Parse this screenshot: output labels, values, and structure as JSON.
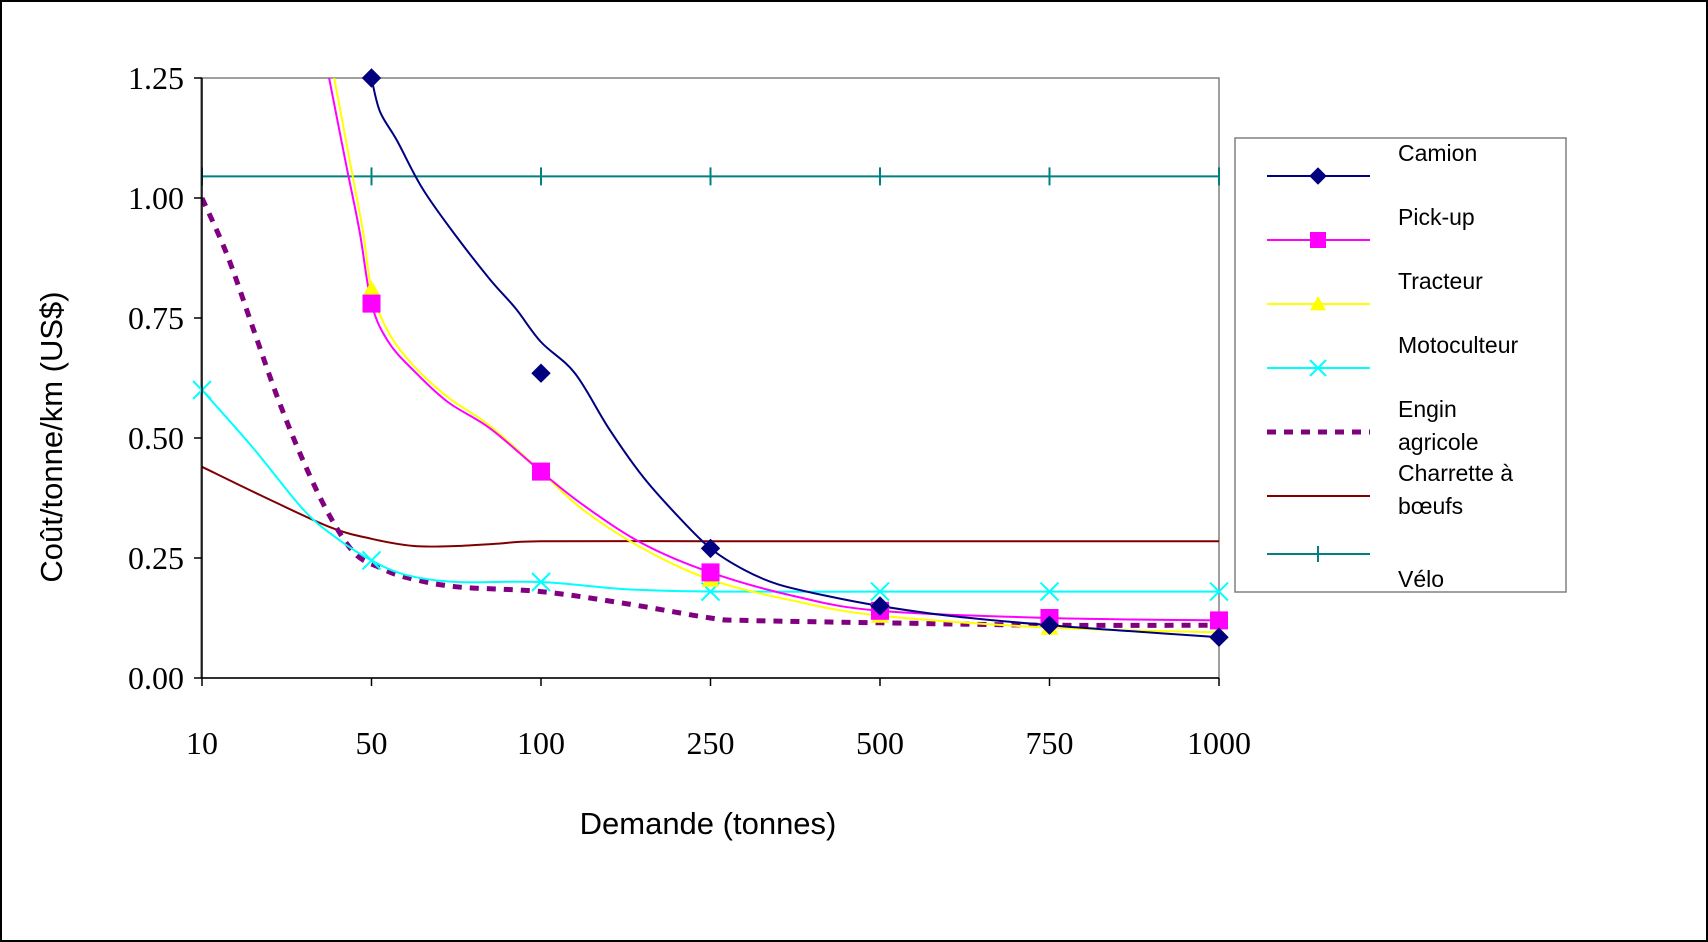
{
  "chart_data": {
    "type": "line",
    "title": "",
    "xlabel": "Demande (tonnes)",
    "ylabel": "Coût/tonne/km (US$)",
    "categories": [
      "10",
      "50",
      "100",
      "250",
      "500",
      "750",
      "1000"
    ],
    "yticks": [
      "0.00",
      "0.25",
      "0.50",
      "0.75",
      "1.00",
      "1.25"
    ],
    "ylim": [
      0,
      1.25
    ],
    "grid": false,
    "legend_position": "right",
    "series": [
      {
        "name": "Camion",
        "color": "#000080",
        "marker": "diamond",
        "dashed": false,
        "x": [
          1,
          1.05,
          1.15,
          1.3,
          1.5,
          1.7,
          1.85,
          2,
          2.2,
          2.4,
          2.6,
          2.8,
          3,
          3.2,
          3.4,
          3.7,
          4,
          4.4,
          5,
          5.5,
          6
        ],
        "y": [
          1.25,
          1.18,
          1.12,
          1.02,
          0.92,
          0.83,
          0.77,
          0.7,
          0.635,
          0.52,
          0.42,
          0.34,
          0.27,
          0.225,
          0.195,
          0.17,
          0.15,
          0.13,
          0.11,
          0.097,
          0.085
        ],
        "marker_x": [
          1,
          2,
          3,
          4,
          5,
          6
        ],
        "marker_y": [
          1.25,
          0.635,
          0.27,
          0.15,
          0.11,
          0.085
        ]
      },
      {
        "name": "Pick-up",
        "color": "#ff00ff",
        "marker": "square",
        "dashed": false,
        "x": [
          0.75,
          0.85,
          0.93,
          1,
          1.1,
          1.25,
          1.45,
          1.7,
          2,
          2.25,
          2.6,
          3,
          3.5,
          4,
          5,
          6
        ],
        "y": [
          1.25,
          1.07,
          0.93,
          0.78,
          0.7,
          0.64,
          0.575,
          0.52,
          0.43,
          0.36,
          0.28,
          0.22,
          0.17,
          0.14,
          0.125,
          0.12
        ],
        "marker_x": [
          1,
          2,
          3,
          4,
          5,
          6
        ],
        "marker_y": [
          0.78,
          0.43,
          0.22,
          0.14,
          0.125,
          0.12
        ]
      },
      {
        "name": "Tracteur",
        "color": "#ffff00",
        "marker": "triangle",
        "dashed": false,
        "x": [
          0.78,
          0.87,
          0.95,
          1,
          1.1,
          1.25,
          1.45,
          1.7,
          2,
          2.25,
          2.6,
          3,
          3.5,
          4,
          5,
          6
        ],
        "y": [
          1.25,
          1.08,
          0.93,
          0.81,
          0.72,
          0.65,
          0.585,
          0.525,
          0.43,
          0.35,
          0.27,
          0.205,
          0.16,
          0.13,
          0.105,
          0.095
        ],
        "marker_x": [
          1,
          2,
          3,
          4,
          5,
          6
        ],
        "marker_y": [
          0.81,
          0.43,
          0.205,
          0.13,
          0.105,
          0.095
        ]
      },
      {
        "name": "Motoculteur",
        "color": "#00ffff",
        "marker": "x",
        "dashed": false,
        "x": [
          0,
          0.3,
          0.6,
          0.8,
          1,
          1.2,
          1.5,
          2,
          2.5,
          3,
          4,
          5,
          6
        ],
        "y": [
          0.6,
          0.48,
          0.35,
          0.29,
          0.245,
          0.215,
          0.2,
          0.2,
          0.185,
          0.18,
          0.18,
          0.18,
          0.18
        ],
        "marker_x": [
          0,
          1,
          2,
          3,
          4,
          5,
          6
        ],
        "marker_y": [
          0.6,
          0.245,
          0.2,
          0.18,
          0.18,
          0.18,
          0.18
        ]
      },
      {
        "name": "Engin agricole",
        "color": "#800080",
        "marker": "none",
        "dashed": true,
        "x": [
          0,
          0.15,
          0.3,
          0.45,
          0.6,
          0.75,
          0.9,
          1.05,
          1.2,
          1.5,
          2,
          2.5,
          3,
          3.2,
          4,
          5,
          6
        ],
        "y": [
          1.0,
          0.88,
          0.73,
          0.58,
          0.45,
          0.34,
          0.26,
          0.23,
          0.21,
          0.19,
          0.18,
          0.155,
          0.125,
          0.12,
          0.115,
          0.11,
          0.11
        ],
        "marker_x": [],
        "marker_y": []
      },
      {
        "name": "Charrette à bœufs",
        "color": "#800000",
        "marker": "none",
        "dashed": false,
        "x": [
          0,
          0.35,
          0.75,
          1,
          1.25,
          1.5,
          1.75,
          2,
          3,
          4,
          5,
          6
        ],
        "y": [
          0.44,
          0.38,
          0.315,
          0.29,
          0.275,
          0.275,
          0.28,
          0.285,
          0.285,
          0.285,
          0.285,
          0.285
        ],
        "marker_x": [],
        "marker_y": []
      },
      {
        "name": "Vélo",
        "color": "#008080",
        "marker": "plus",
        "dashed": false,
        "x": [
          0,
          1,
          2,
          3,
          4,
          5,
          6
        ],
        "y": [
          1.045,
          1.045,
          1.045,
          1.045,
          1.045,
          1.045,
          1.045
        ],
        "marker_x": [
          0,
          1,
          2,
          3,
          4,
          5,
          6
        ],
        "marker_y": [
          1.045,
          1.045,
          1.045,
          1.045,
          1.045,
          1.045,
          1.045
        ]
      }
    ],
    "legend_lines": [
      [
        "Camion"
      ],
      [
        "Pick-up"
      ],
      [
        "Tracteur"
      ],
      [
        "Motoculteur"
      ],
      [
        "Engin",
        "agricole"
      ],
      [
        "Charrette à",
        "bœufs"
      ],
      [
        "Vélo"
      ]
    ]
  }
}
